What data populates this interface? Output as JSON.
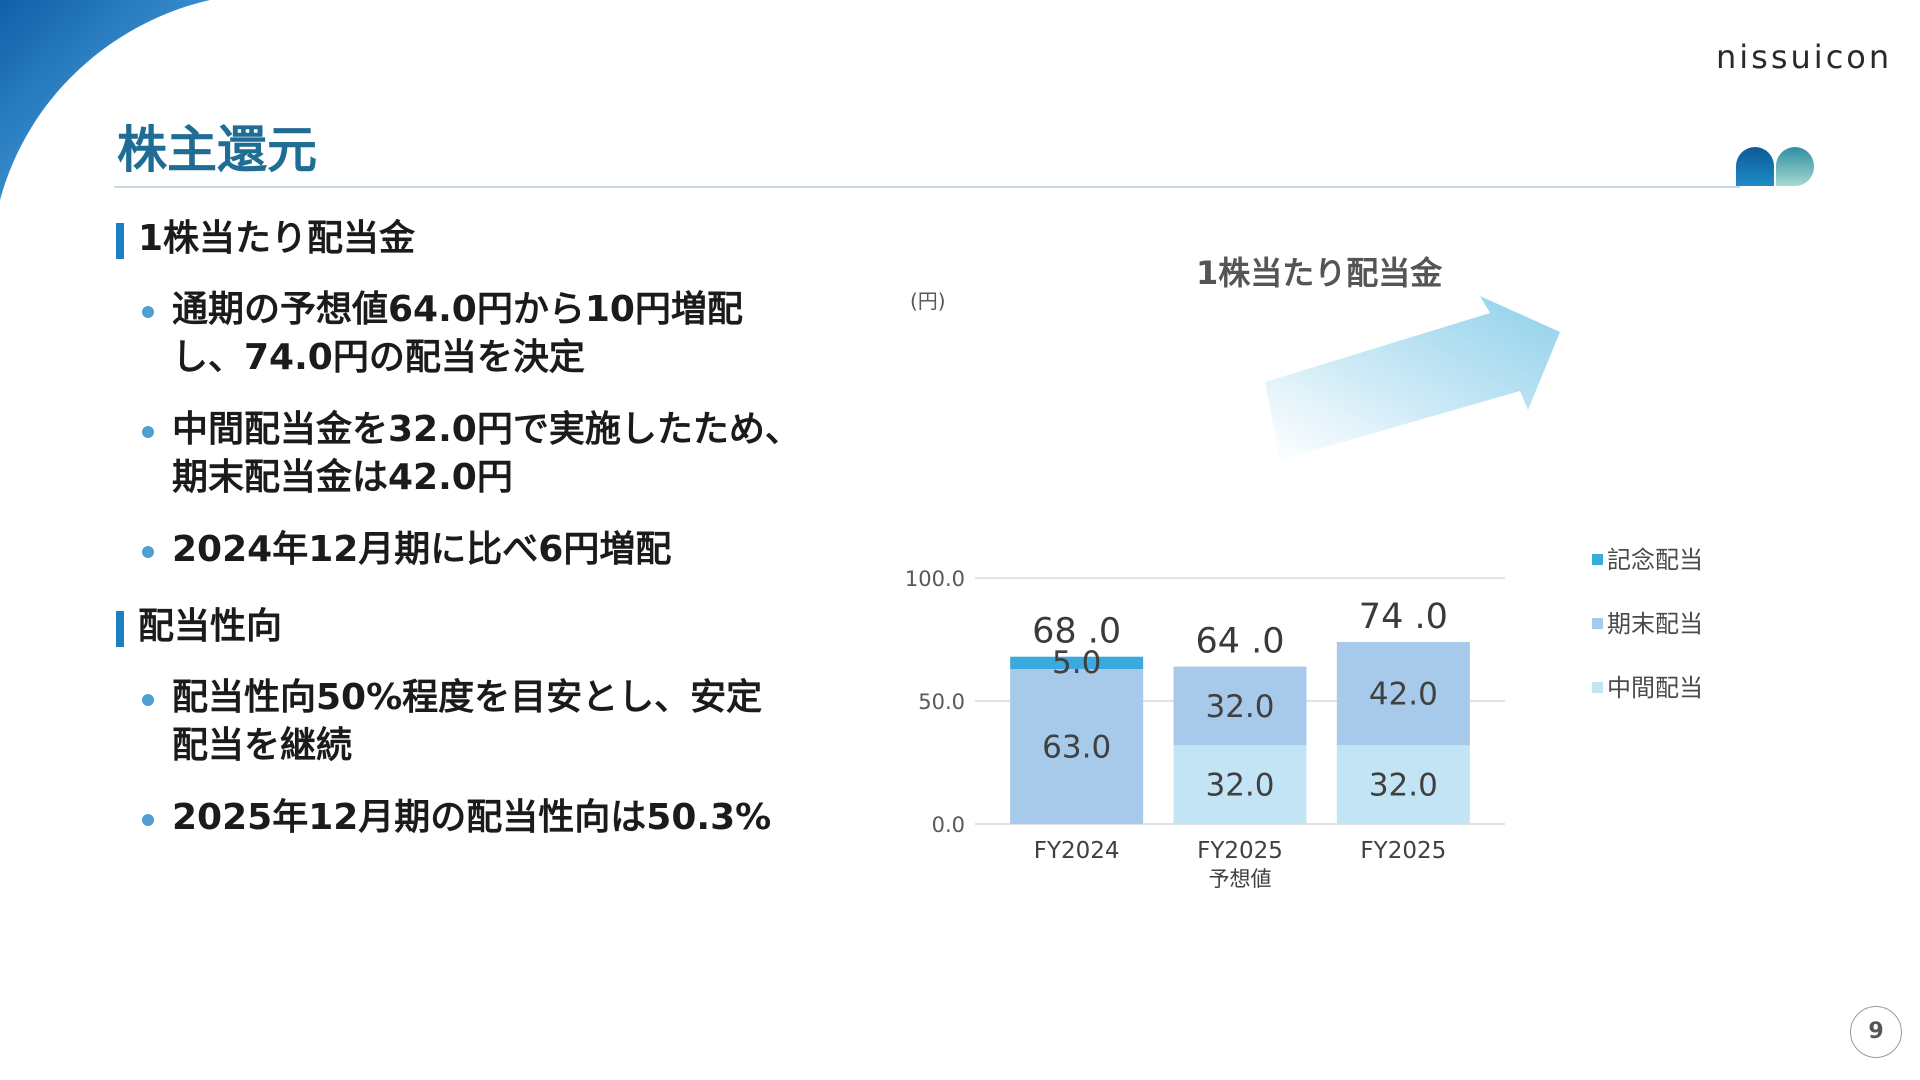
{
  "header": {
    "logo_text": "nissuicon",
    "title": "株主還元"
  },
  "sections": [
    {
      "heading": "1株当たり配当金",
      "bullets": [
        "通期の予想値64.0円から10円増配",
        "し、74.0円の配当を決定",
        "中間配当金を32.0円で実施したため、",
        "期末配当金は42.0円",
        "2024年12月期に比べ6円増配"
      ]
    },
    {
      "heading": "配当性向",
      "bullets": [
        "配当性向50%程度を目安とし、安定",
        "配当を継続",
        "2025年12月期の配当性向は50.3%"
      ]
    }
  ],
  "chart_data": {
    "type": "bar",
    "stacked": true,
    "title": "1株当たり配当金",
    "ylabel": "(円)",
    "ylim": [
      0,
      100
    ],
    "yticks": [
      "0.0",
      "50.0",
      "100.0"
    ],
    "categories": [
      "FY2024",
      "FY2025",
      "FY2025"
    ],
    "category_sublabels": [
      "",
      "予想値",
      ""
    ],
    "series": [
      {
        "name": "中間配当",
        "color": "#c2e4f4",
        "values": [
          0,
          32.0,
          32.0
        ],
        "labels": [
          "",
          "32.0",
          "32.0"
        ]
      },
      {
        "name": "期末配当",
        "color": "#a7caea",
        "values": [
          63.0,
          32.0,
          42.0
        ],
        "labels": [
          "63.0",
          "32.0",
          "42.0"
        ]
      },
      {
        "name": "記念配当",
        "color": "#3aa9dd",
        "values": [
          5.0,
          0,
          0
        ],
        "labels": [
          "5.0",
          "",
          ""
        ]
      }
    ],
    "totals": [
      68.0,
      64.0,
      74.0
    ],
    "total_labels": [
      "68 .0",
      "64 .0",
      "74 .0"
    ],
    "legend_position": "right",
    "grid": true
  },
  "footer": {
    "page_number": "9"
  },
  "colors": {
    "title": "#1f6d95",
    "heading_marker": "#1d7ec2",
    "bullet": "#4f9fd0",
    "arrow": "#9fd6ee"
  }
}
